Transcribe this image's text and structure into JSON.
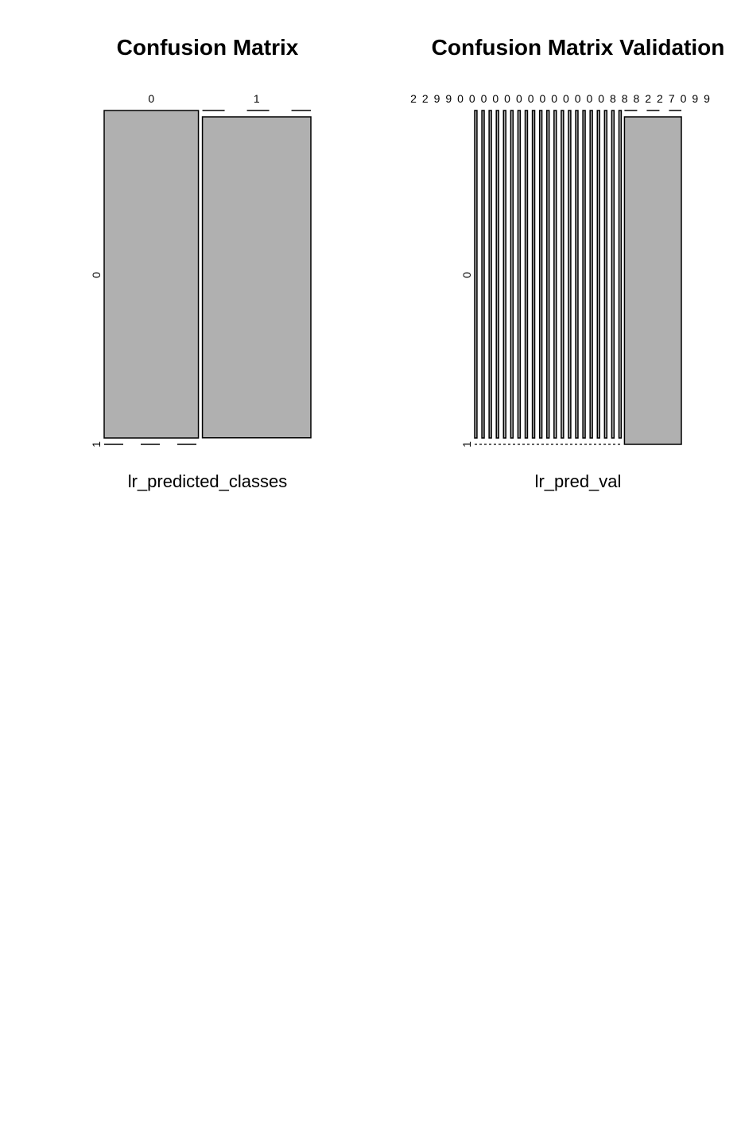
{
  "chart_data": [
    {
      "type": "mosaic",
      "title": "Confusion Matrix",
      "xlabel": "lr_predicted_classes",
      "ylabel": "",
      "x_categories": [
        "0",
        "1"
      ],
      "x_widths": [
        0.465,
        0.535
      ],
      "y_categories": [
        "0",
        "1"
      ],
      "cells": [
        [
          1.0,
          0.0
        ],
        [
          0.98,
          0.02
        ]
      ],
      "fill": "#b0b0b0",
      "stroke": "#000000"
    },
    {
      "type": "mosaic",
      "title": "Confusion Matrix Validation",
      "xlabel": "lr_pred_val",
      "ylabel": "",
      "x_labels_display": [
        "2",
        "2",
        "9",
        "9",
        "0",
        "0",
        "0",
        "0",
        "0",
        "0",
        "0",
        "0",
        "0",
        "0",
        "0",
        "0",
        "0",
        "8",
        "8",
        "8",
        "2",
        "2",
        "7",
        "0",
        "9",
        "9"
      ],
      "x_labels_overlapped": true,
      "thin_columns": 21,
      "thin_column_fraction": 0.0113,
      "last_column_fraction": 0.2753,
      "y_categories": [
        "0",
        "1"
      ],
      "last_column_y_split": [
        0.98,
        0.02
      ],
      "fill": "#b0b0b0",
      "stroke": "#000000"
    }
  ]
}
